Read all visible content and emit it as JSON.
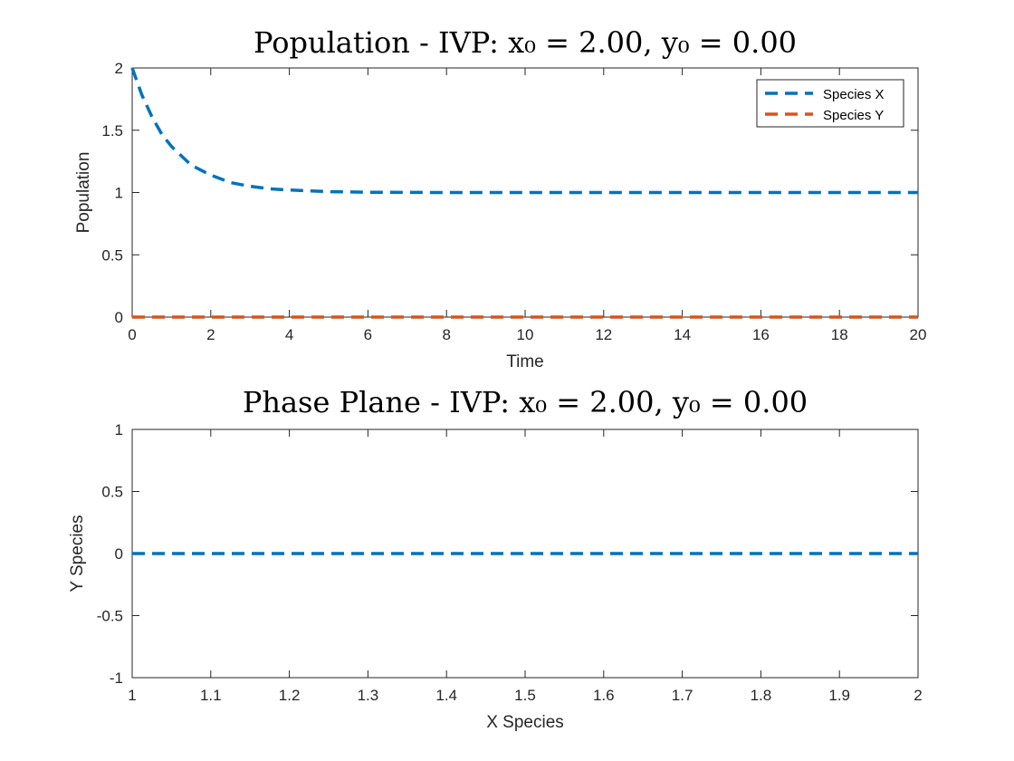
{
  "chart_data": [
    {
      "type": "line",
      "title": "Population - IVP: x₀ = 2.00, y₀ = 0.00",
      "xlabel": "Time",
      "ylabel": "Population",
      "xlim": [
        0,
        20
      ],
      "ylim": [
        0,
        2
      ],
      "xticks": [
        "0",
        "2",
        "4",
        "6",
        "8",
        "10",
        "12",
        "14",
        "16",
        "18",
        "20"
      ],
      "yticks": [
        "0",
        "0.5",
        "1",
        "1.5",
        "2"
      ],
      "grid": false,
      "legend": "top-right",
      "series": [
        {
          "name": "Species X",
          "color": "#0072BD",
          "style": "dashed",
          "x": [
            0,
            0.25,
            0.5,
            0.75,
            1,
            1.5,
            2,
            2.5,
            3,
            3.5,
            4,
            5,
            6,
            8,
            10,
            12,
            14,
            16,
            18,
            20
          ],
          "y": [
            2.0,
            1.78,
            1.61,
            1.47,
            1.37,
            1.22,
            1.14,
            1.08,
            1.05,
            1.03,
            1.02,
            1.007,
            1.002,
            1.0,
            1.0,
            1.0,
            1.0,
            1.0,
            1.0,
            1.0
          ]
        },
        {
          "name": "Species Y",
          "color": "#D95319",
          "style": "dashed",
          "x": [
            0,
            20
          ],
          "y": [
            0,
            0
          ]
        }
      ]
    },
    {
      "type": "line",
      "title": "Phase Plane - IVP: x₀ = 2.00, y₀ = 0.00",
      "xlabel": "X Species",
      "ylabel": "Y Species",
      "xlim": [
        1,
        2
      ],
      "ylim": [
        -1,
        1
      ],
      "xticks": [
        "1",
        "1.1",
        "1.2",
        "1.3",
        "1.4",
        "1.5",
        "1.6",
        "1.7",
        "1.8",
        "1.9",
        "2"
      ],
      "yticks": [
        "-1",
        "-0.5",
        "0",
        "0.5",
        "1"
      ],
      "grid": false,
      "series": [
        {
          "color": "#0072BD",
          "style": "dashed",
          "x": [
            1,
            2
          ],
          "y": [
            0,
            0
          ]
        }
      ]
    }
  ]
}
